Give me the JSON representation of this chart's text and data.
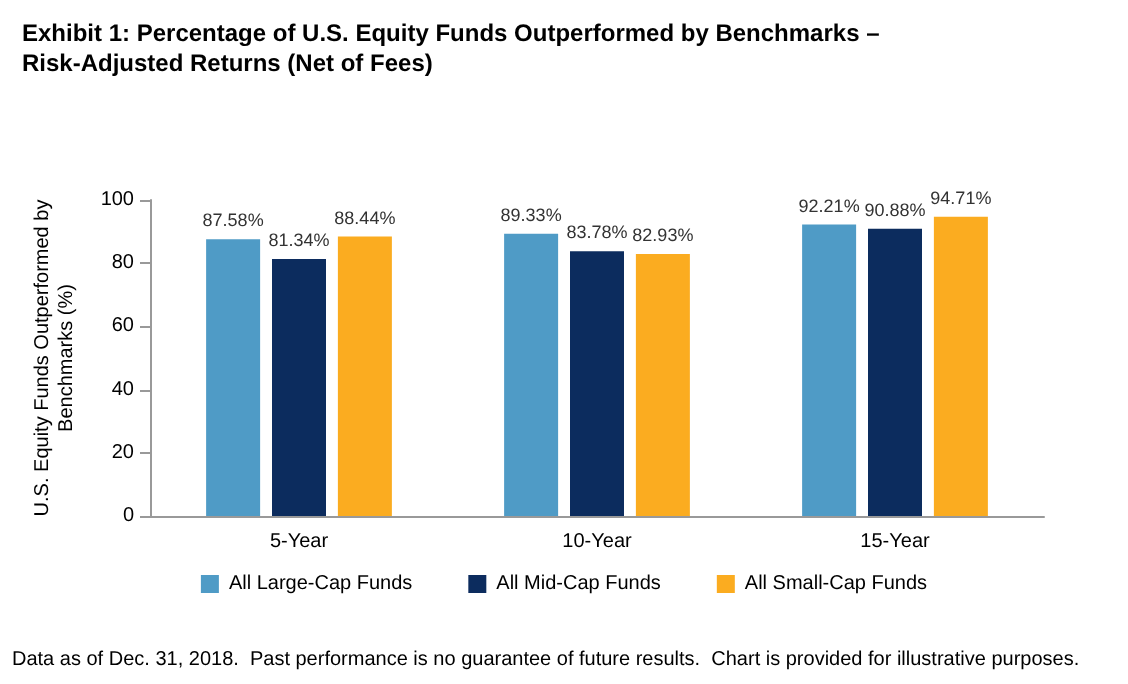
{
  "chart_data": {
    "type": "bar",
    "title": "Exhibit 1: Percentage of U.S. Equity Funds Outperformed by Benchmarks –\nRisk-Adjusted Returns (Net of Fees)",
    "ylabel": "U.S. Equity Funds Outperformed by\nBenchmarks (%)",
    "categories": [
      "5-Year",
      "10-Year",
      "15-Year"
    ],
    "series": [
      {
        "name": "All Large-Cap Funds",
        "color": "#4f9bc6",
        "values": [
          87.58,
          89.33,
          92.21
        ]
      },
      {
        "name": "All Mid-Cap Funds",
        "color": "#0c2c5e",
        "values": [
          81.34,
          83.78,
          90.88
        ]
      },
      {
        "name": "All Small-Cap Funds",
        "color": "#fbac20",
        "values": [
          88.44,
          82.93,
          94.71
        ]
      }
    ],
    "value_labels": [
      [
        "87.58%",
        "89.33%",
        "92.21%"
      ],
      [
        "81.34%",
        "83.78%",
        "90.88%"
      ],
      [
        "88.44%",
        "82.93%",
        "94.71%"
      ]
    ],
    "ylim": [
      0,
      100
    ],
    "yticks": [
      0,
      20,
      40,
      60,
      80,
      100
    ],
    "grid": false,
    "legend": "bottom",
    "annotations": [
      "Data as of Dec. 31, 2018.  Past performance is no guarantee of future results.  Chart is provided for illustrative purposes."
    ]
  }
}
